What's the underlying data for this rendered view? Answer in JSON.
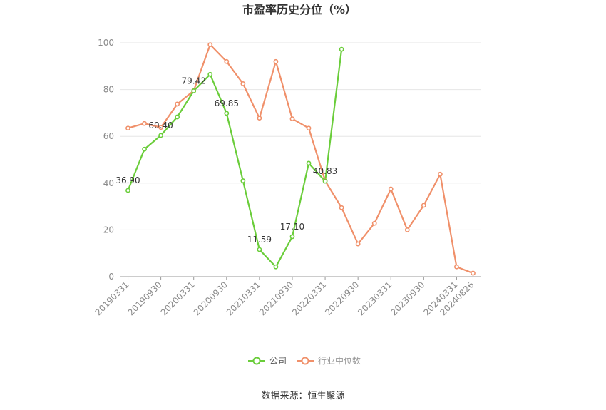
{
  "chart_data": {
    "type": "line",
    "title": "市盈率历史分位（%）",
    "xlabel": "",
    "ylabel": "",
    "ylim": [
      0,
      100
    ],
    "yticks": [
      0,
      20,
      40,
      60,
      80,
      100
    ],
    "grid": true,
    "legend_position": "bottom",
    "categories": [
      "20190331",
      "20190630",
      "20190930",
      "20191231",
      "20200331",
      "20200630",
      "20200930",
      "20201231",
      "20210331",
      "20210630",
      "20210930",
      "20211231",
      "20220331",
      "20220630",
      "20220930",
      "20221231",
      "20230331",
      "20230630",
      "20230930",
      "20231231",
      "20240331",
      "20240826"
    ],
    "tick_labels": [
      "20190331",
      "20190930",
      "20200331",
      "20200930",
      "20210331",
      "20210930",
      "20220331",
      "20220930",
      "20230331",
      "20230930",
      "20240331",
      "20240826"
    ],
    "series": [
      {
        "name": "公司",
        "color": "#6ACD3A",
        "values": [
          36.9,
          54.5,
          60.4,
          68.3,
          79.42,
          86.5,
          69.85,
          41.0,
          11.59,
          4.2,
          17.1,
          48.5,
          40.83,
          97.2,
          null,
          null,
          null,
          null,
          null,
          null,
          null,
          null
        ],
        "labels": {
          "0": "36.90",
          "2": "60.40",
          "4": "79.42",
          "6": "69.85",
          "8": "11.59",
          "10": "17.10",
          "12": "40.83"
        }
      },
      {
        "name": "行业中位数",
        "color": "#F0906A",
        "values": [
          63.5,
          65.5,
          63.8,
          73.8,
          79.5,
          99.2,
          92.0,
          82.5,
          67.8,
          92.0,
          67.5,
          63.5,
          41.0,
          29.5,
          14.0,
          22.8,
          37.5,
          20.0,
          30.5,
          43.8,
          4.2,
          1.5
        ]
      }
    ]
  },
  "source_text": "数据来源：恒生聚源"
}
